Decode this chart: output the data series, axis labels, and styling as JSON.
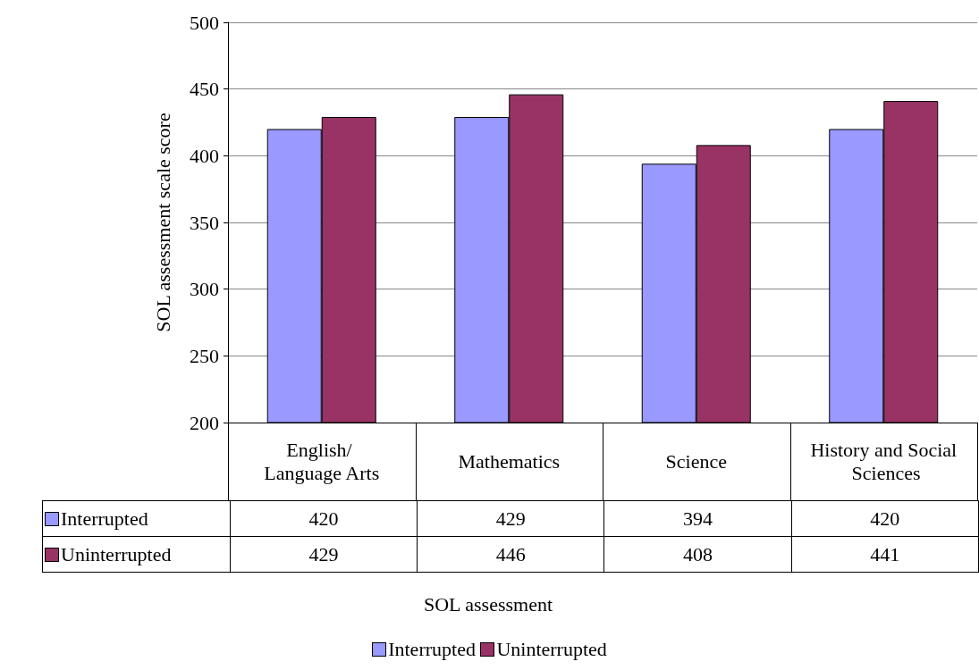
{
  "chart_data": {
    "type": "bar",
    "annotations": [
      "SOL assessment"
    ],
    "ylabel": "SOL assessment scale score",
    "categories": [
      "English/ Language Arts",
      "Mathematics",
      "Science",
      "History and Social Sciences"
    ],
    "series": [
      {
        "name": "Interrupted",
        "color": "#9999ff",
        "values": [
          420,
          429,
          394,
          420
        ]
      },
      {
        "name": "Uninterrupted",
        "color": "#993366",
        "values": [
          429,
          446,
          408,
          441
        ]
      }
    ],
    "ylim": [
      200,
      500
    ],
    "yticks": [
      200,
      250,
      300,
      350,
      400,
      450,
      500
    ],
    "grid": "y",
    "legend": "bottom",
    "data_labels": true
  }
}
